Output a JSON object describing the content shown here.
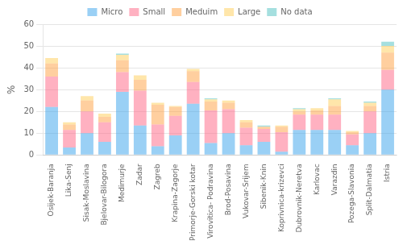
{
  "chart_data": {
    "type": "bar",
    "stacked": true,
    "categories": [
      "Osijek-Baranja",
      "Lika-Senj",
      "Sisak-Moslavina",
      "Bjelovar-Bilogora",
      "Medimurje",
      "Zadar",
      "Zagreb",
      "Krapina-Zagorje",
      "Primorje-Gorski kotar",
      "Virovitica- Podravina",
      "Brod-Posavina",
      "Vukovar-Srijem",
      "Sibenik-Knin",
      "Koprivnica-krizevci",
      "Dubrovnik-Neretva",
      "Karlovac",
      "Varazdin",
      "Pozega-Slavonia",
      "Split-Dalmatia",
      "Istria"
    ],
    "series": [
      {
        "name": "Micro",
        "values": [
          22,
          3.5,
          10,
          6,
          29,
          13.5,
          4,
          9,
          23.5,
          5.5,
          10,
          4.5,
          6,
          1.5,
          11.5,
          11.5,
          11.5,
          4.5,
          10,
          30
        ]
      },
      {
        "name": "Small",
        "values": [
          14,
          8,
          10,
          9,
          9,
          16,
          10,
          9,
          10,
          15,
          11,
          8,
          6,
          9,
          7,
          7,
          7,
          5,
          10,
          9
        ]
      },
      {
        "name": "Meduim",
        "values": [
          6,
          2.5,
          5,
          2.5,
          5.5,
          5,
          9,
          4,
          5,
          4,
          3,
          2.5,
          1,
          2.5,
          1.5,
          2,
          4,
          1,
          2.5,
          8
        ]
      },
      {
        "name": "Large",
        "values": [
          2.5,
          1,
          2,
          1.5,
          2.5,
          2,
          1,
          0.5,
          1,
          1,
          1,
          1,
          0,
          0.5,
          1,
          1,
          3,
          0.5,
          1.5,
          3
        ]
      },
      {
        "name": "No data",
        "values": [
          0,
          0,
          0,
          0,
          0.5,
          0,
          0,
          0,
          0,
          0.5,
          0,
          0,
          0.5,
          0,
          0.5,
          0,
          0.5,
          0,
          0.5,
          2
        ]
      }
    ],
    "ylabel": "%",
    "ylim": [
      0,
      60
    ],
    "yticks": [
      0,
      10,
      20,
      30,
      40,
      50,
      60
    ],
    "grid": true,
    "legend": "top"
  }
}
